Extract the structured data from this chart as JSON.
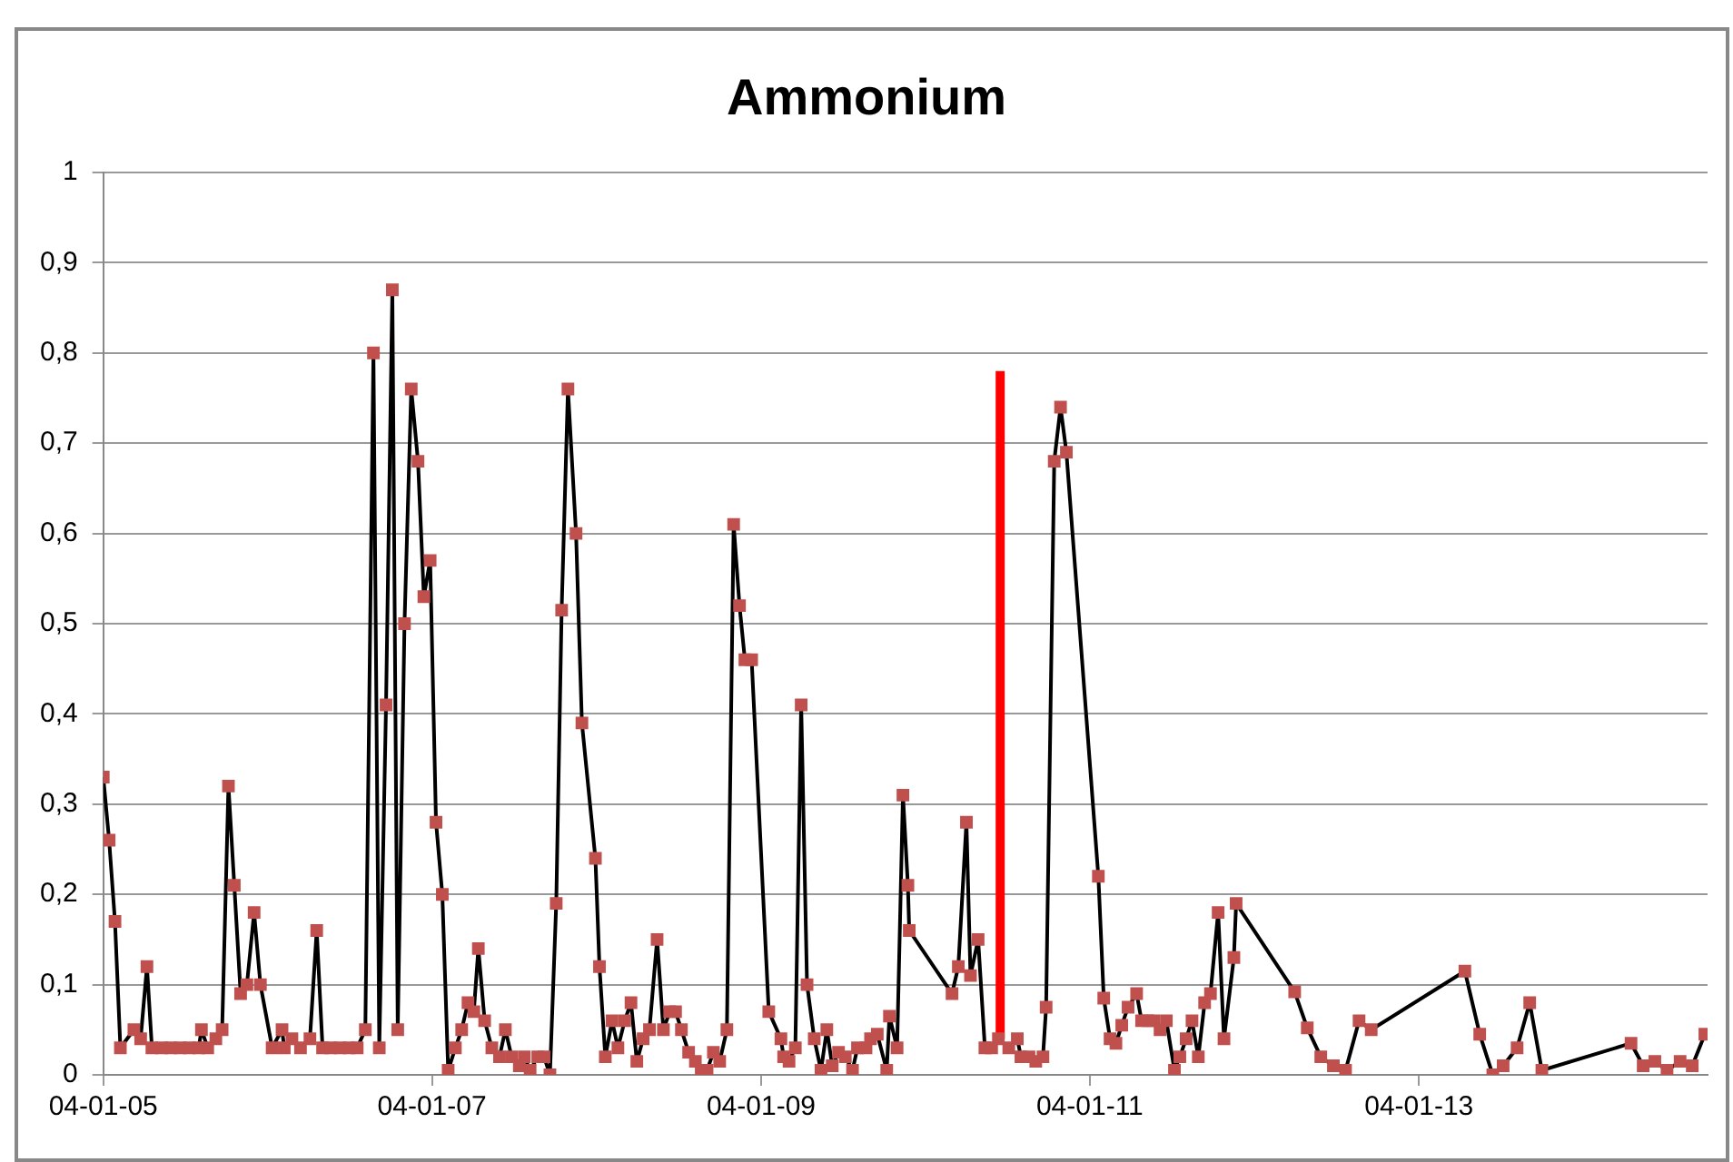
{
  "chart_data": {
    "type": "line",
    "title": "Ammonium",
    "xlim": [
      "2005-01-04",
      "2014-10-07"
    ],
    "xticks": [
      {
        "value": "2005-01-04",
        "label": "04-01-05"
      },
      {
        "value": "2007-01-04",
        "label": "04-01-07"
      },
      {
        "value": "2009-01-04",
        "label": "04-01-09"
      },
      {
        "value": "2011-01-04",
        "label": "04-01-11"
      },
      {
        "value": "2013-01-04",
        "label": "04-01-13"
      }
    ],
    "ylim": [
      0,
      1
    ],
    "yticks": [
      0,
      {
        "value": 0.1,
        "label": "0,1"
      },
      {
        "value": 0.2,
        "label": "0,2"
      },
      {
        "value": 0.3,
        "label": "0,3"
      },
      {
        "value": 0.4,
        "label": "0,4"
      },
      {
        "value": 0.5,
        "label": "0,5"
      },
      {
        "value": 0.6,
        "label": "0,6"
      },
      {
        "value": 0.7,
        "label": "0,7"
      },
      {
        "value": 0.8,
        "label": "0,8"
      },
      {
        "value": 0.9,
        "label": "0,9"
      },
      1
    ],
    "grid": "y",
    "legend": false,
    "series": [
      {
        "color": "#c0504d",
        "marker": "square",
        "x": [
          "2005-01-04",
          "2005-01-17",
          "2005-01-30",
          "2005-02-11",
          "2005-03-13",
          "2005-03-28",
          "2005-04-11",
          "2005-04-22",
          "2005-05-14",
          "2005-06-03",
          "2005-06-24",
          "2005-07-14",
          "2005-08-04",
          "2005-08-10",
          "2005-08-24",
          "2005-09-11",
          "2005-09-25",
          "2005-10-09",
          "2005-10-22",
          "2005-11-05",
          "2005-11-19",
          "2005-12-05",
          "2005-12-19",
          "2006-01-14",
          "2006-02-05",
          "2006-02-10",
          "2006-02-27",
          "2006-03-18",
          "2006-04-08",
          "2006-04-23",
          "2006-05-06",
          "2006-05-24",
          "2006-06-14",
          "2006-07-04",
          "2006-07-22",
          "2006-08-09",
          "2006-08-27",
          "2006-09-09",
          "2006-09-24",
          "2006-10-08",
          "2006-10-20",
          "2006-11-04",
          "2006-11-19",
          "2006-12-04",
          "2006-12-17",
          "2006-12-31",
          "2007-01-13",
          "2007-01-27",
          "2007-02-09",
          "2007-02-25",
          "2007-03-11",
          "2007-03-25",
          "2007-04-07",
          "2007-04-17",
          "2007-05-01",
          "2007-05-17",
          "2007-06-03",
          "2007-06-16",
          "2007-06-30",
          "2007-07-17",
          "2007-07-28",
          "2007-08-10",
          "2007-08-27",
          "2007-09-10",
          "2007-09-23",
          "2007-10-07",
          "2007-10-19",
          "2007-11-02",
          "2007-11-20",
          "2007-12-03",
          "2008-01-02",
          "2008-01-11",
          "2008-01-24",
          "2008-02-08",
          "2008-02-21",
          "2008-03-07",
          "2008-03-21",
          "2008-04-03",
          "2008-04-17",
          "2008-05-01",
          "2008-05-18",
          "2008-06-01",
          "2008-06-15",
          "2008-06-28",
          "2008-07-11",
          "2008-07-27",
          "2008-08-11",
          "2008-08-24",
          "2008-09-06",
          "2008-09-20",
          "2008-10-04",
          "2008-10-20",
          "2008-11-04",
          "2008-11-17",
          "2008-11-29",
          "2008-12-14",
          "2009-01-21",
          "2009-02-17",
          "2009-02-23",
          "2009-03-07",
          "2009-03-21",
          "2009-04-03",
          "2009-04-16",
          "2009-05-02",
          "2009-05-17",
          "2009-05-30",
          "2009-06-11",
          "2009-06-25",
          "2009-07-10",
          "2009-07-26",
          "2009-08-06",
          "2009-08-25",
          "2009-09-04",
          "2009-09-19",
          "2009-10-10",
          "2009-10-16",
          "2009-11-02",
          "2009-11-15",
          "2009-11-26",
          "2009-11-29",
          "2010-03-04",
          "2010-03-18",
          "2010-04-05",
          "2010-04-14",
          "2010-05-01",
          "2010-05-16",
          "2010-05-31",
          "2010-06-15",
          "2010-07-08",
          "2010-07-27",
          "2010-08-04",
          "2010-08-22",
          "2010-09-06",
          "2010-09-22",
          "2010-09-29",
          "2010-10-17",
          "2010-10-31",
          "2010-11-13",
          "2011-01-23",
          "2011-02-04",
          "2011-02-18",
          "2011-03-03",
          "2011-03-16",
          "2011-03-30",
          "2011-04-18",
          "2011-04-29",
          "2011-05-13",
          "2011-05-26",
          "2011-06-09",
          "2011-06-23",
          "2011-07-11",
          "2011-07-23",
          "2011-08-06",
          "2011-08-19",
          "2011-09-02",
          "2011-09-16",
          "2011-09-29",
          "2011-10-16",
          "2011-10-29",
          "2011-11-20",
          "2011-11-25",
          "2012-04-03",
          "2012-05-01",
          "2012-05-31",
          "2012-06-28",
          "2012-07-25",
          "2012-08-24",
          "2012-09-20",
          "2013-04-16",
          "2013-05-19",
          "2013-06-17",
          "2013-07-10",
          "2013-08-10",
          "2013-09-07",
          "2013-10-04",
          "2014-04-20",
          "2014-05-17",
          "2014-06-12",
          "2014-07-09",
          "2014-08-07",
          "2014-09-03",
          "2014-10-01"
        ],
        "values": [
          0.33,
          0.26,
          0.17,
          0.03,
          0.05,
          0.04,
          0.12,
          0.03,
          0.03,
          0.03,
          0.03,
          0.03,
          0.03,
          0.05,
          0.03,
          0.04,
          0.05,
          0.32,
          0.21,
          0.09,
          0.1,
          0.18,
          0.1,
          0.03,
          0.05,
          0.03,
          0.04,
          0.03,
          0.04,
          0.16,
          0.03,
          0.03,
          0.03,
          0.03,
          0.03,
          0.05,
          0.8,
          0.03,
          0.41,
          0.87,
          0.05,
          0.5,
          0.76,
          0.68,
          0.53,
          0.57,
          0.28,
          0.2,
          0.005,
          0.03,
          0.05,
          0.08,
          0.07,
          0.14,
          0.06,
          0.03,
          0.02,
          0.05,
          0.02,
          0.01,
          0.02,
          0.005,
          0.02,
          0.02,
          0,
          0.19,
          0.515,
          0.76,
          0.6,
          0.39,
          0.24,
          0.12,
          0.02,
          0.06,
          0.03,
          0.06,
          0.08,
          0.015,
          0.04,
          0.05,
          0.15,
          0.05,
          0.07,
          0.07,
          0.05,
          0.025,
          0.015,
          0.005,
          0.005,
          0.025,
          0.015,
          0.05,
          0.61,
          0.52,
          0.46,
          0.46,
          0.07,
          0.04,
          0.02,
          0.015,
          0.03,
          0.41,
          0.1,
          0.04,
          0.005,
          0.05,
          0.01,
          0.025,
          0.02,
          0.005,
          0.03,
          0.03,
          0.04,
          0.045,
          0.005,
          0.065,
          0.03,
          0.31,
          0.21,
          0.16,
          0.09,
          0.12,
          0.28,
          0.11,
          0.15,
          0.03,
          0.03,
          0.04,
          0.03,
          0.04,
          0.02,
          0.02,
          0.015,
          0.02,
          0.075,
          0.68,
          0.74,
          0.69,
          0.22,
          0.085,
          0.04,
          0.035,
          0.055,
          0.075,
          0.09,
          0.06,
          0.06,
          0.06,
          0.05,
          0.06,
          0.005,
          0.02,
          0.04,
          0.06,
          0.02,
          0.08,
          0.09,
          0.18,
          0.04,
          0.13,
          0.19,
          0.092,
          0.052,
          0.02,
          0.01,
          0.005,
          0.06,
          0.05,
          0.115,
          0.045,
          0,
          0.01,
          0.03,
          0.08,
          0.005,
          0.035,
          0.01,
          0.015,
          0.005,
          0.015,
          0.01,
          0.045
        ]
      },
      {
        "color": "#ff0000",
        "marker": "none",
        "x": [
          "2010-06-19",
          "2010-06-19"
        ],
        "values": [
          0.04,
          0.78
        ]
      }
    ]
  }
}
